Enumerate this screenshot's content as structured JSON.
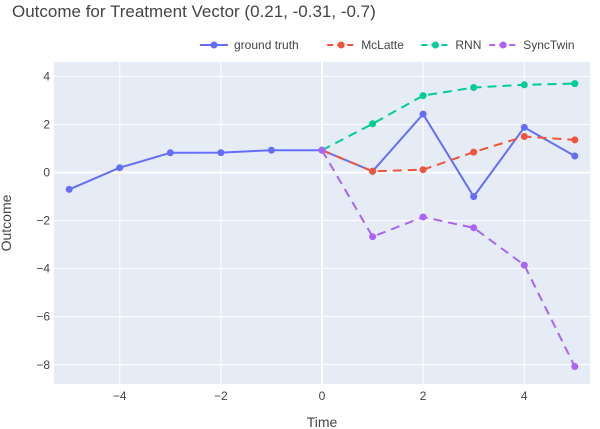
{
  "chart_data": {
    "type": "line",
    "title": "Outcome for Treatment Vector (0.21, -0.31, -0.7)",
    "xlabel": "Time",
    "ylabel": "Outcome",
    "xlim": [
      -5.3,
      5.3
    ],
    "ylim": [
      -8.8,
      4.6
    ],
    "xticks": [
      -4,
      -2,
      0,
      2,
      4
    ],
    "xtick_labels": [
      "−4",
      "−2",
      "0",
      "2",
      "4"
    ],
    "yticks": [
      4,
      2,
      0,
      -2,
      -4,
      -6,
      -8
    ],
    "ytick_labels": [
      "4",
      "2",
      "0",
      "−2",
      "−4",
      "−6",
      "−8"
    ],
    "grid": true,
    "legend_position": "top-right",
    "series": [
      {
        "name": "ground truth",
        "color": "#636efa",
        "dash": "solid",
        "x": [
          -5,
          -4,
          -3,
          -2,
          -1,
          0,
          1,
          2,
          3,
          4,
          5
        ],
        "y": [
          -0.7,
          0.2,
          0.82,
          0.83,
          0.93,
          0.93,
          0.05,
          2.43,
          -1.0,
          1.88,
          0.69
        ]
      },
      {
        "name": "McLatte",
        "color": "#ef553b",
        "dash": "dashed",
        "x": [
          0,
          1,
          2,
          3,
          4,
          5
        ],
        "y": [
          0.93,
          0.05,
          0.12,
          0.85,
          1.5,
          1.36
        ]
      },
      {
        "name": "RNN",
        "color": "#00cc96",
        "dash": "dashed",
        "x": [
          0,
          1,
          2,
          3,
          4,
          5
        ],
        "y": [
          0.93,
          2.03,
          3.2,
          3.54,
          3.65,
          3.7
        ]
      },
      {
        "name": "SyncTwin",
        "color": "#ab63fa",
        "dash": "dashed",
        "x": [
          0,
          1,
          2,
          3,
          4,
          5
        ],
        "y": [
          0.93,
          -2.67,
          -1.85,
          -2.3,
          -3.85,
          -8.07
        ]
      }
    ]
  },
  "colors": {
    "plot_background": "#e5ecf6",
    "grid": "#ffffff",
    "text": "#444444"
  }
}
